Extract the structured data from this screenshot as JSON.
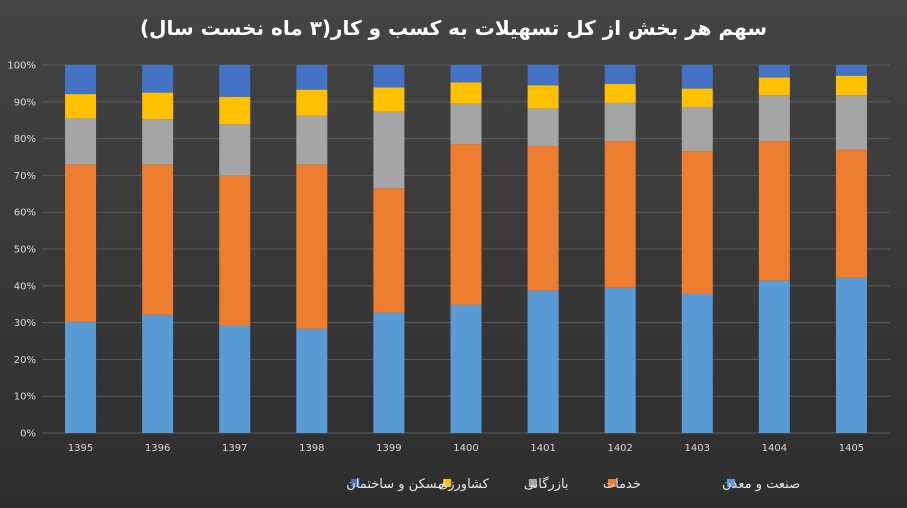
{
  "chart_data": {
    "type": "bar",
    "stacked": "percent",
    "title": "سهم هر بخش از کل تسهیلات به کسب و کار(۳ ماه نخست سال)",
    "categories": [
      "1395",
      "1396",
      "1397",
      "1398",
      "1399",
      "1400",
      "1401",
      "1402",
      "1403",
      "1404",
      "1405"
    ],
    "y_ticks": [
      "0%",
      "10%",
      "20%",
      "30%",
      "40%",
      "50%",
      "60%",
      "70%",
      "80%",
      "90%",
      "100%"
    ],
    "ylim": [
      0,
      100
    ],
    "grid": true,
    "legend_position": "bottom",
    "series": [
      {
        "name": "صنعت و معدن",
        "color": "#5b9bd5",
        "values": [
          30.2,
          32.1,
          29.2,
          28.3,
          32.7,
          34.8,
          38.7,
          39.5,
          37.8,
          41.4,
          42.2
        ]
      },
      {
        "name": "خدمات",
        "color": "#ed7d31",
        "values": [
          42.8,
          40.9,
          40.8,
          44.7,
          33.8,
          43.7,
          39.3,
          39.8,
          38.8,
          37.9,
          34.8
        ]
      },
      {
        "name": "بازرگانی",
        "color": "#a5a5a5",
        "values": [
          12.6,
          12.3,
          13.9,
          13.2,
          20.8,
          11.0,
          10.2,
          10.4,
          12.0,
          12.5,
          14.8
        ]
      },
      {
        "name": "کشاورزی",
        "color": "#ffc000",
        "values": [
          6.5,
          7.2,
          7.4,
          7.1,
          6.6,
          5.8,
          6.3,
          5.2,
          5.0,
          4.8,
          5.3
        ]
      },
      {
        "name": "مسکن و ساختمان",
        "color": "#4472c4",
        "values": [
          7.9,
          7.5,
          8.7,
          6.7,
          6.1,
          4.7,
          5.5,
          5.1,
          6.4,
          3.4,
          2.9
        ]
      }
    ]
  }
}
